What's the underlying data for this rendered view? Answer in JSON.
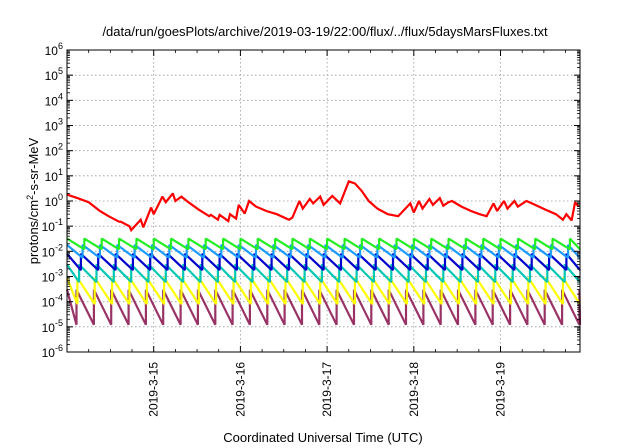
{
  "chart_data": {
    "type": "line",
    "title": "/data/run/goesPlots/archive/2019-03-19/22:00/flux/../flux/5daysMarsFluxes.txt",
    "xlabel": "Coordinated Universal Time (UTC)",
    "ylabel": {
      "prefix": "protons/cm",
      "sup": "2",
      "suffix": "-s-sr-MeV"
    },
    "x_range": [
      "2019-03-14 00:00",
      "2019-03-19 22:00"
    ],
    "x_ticks": [
      "2019-3-15",
      "2019-3-16",
      "2019-3-17",
      "2019-3-18",
      "2019-3-19"
    ],
    "y_scale": "log",
    "ylim": [
      1e-06,
      1000000.0
    ],
    "y_ticks": [
      {
        "base": "10",
        "exp": "-6"
      },
      {
        "base": "10",
        "exp": "-5"
      },
      {
        "base": "10",
        "exp": "-4"
      },
      {
        "base": "10",
        "exp": "-3"
      },
      {
        "base": "10",
        "exp": "-2"
      },
      {
        "base": "10",
        "exp": "-1"
      },
      {
        "base": "10",
        "exp": "0"
      },
      {
        "base": "10",
        "exp": "1"
      },
      {
        "base": "10",
        "exp": "2"
      },
      {
        "base": "10",
        "exp": "3"
      },
      {
        "base": "10",
        "exp": "4"
      },
      {
        "base": "10",
        "exp": "5"
      },
      {
        "base": "10",
        "exp": "6"
      }
    ],
    "grid": true,
    "series": [
      {
        "color": "#ff0000",
        "x": [
          0.0,
          0.12,
          0.25,
          0.38,
          0.48,
          0.6,
          0.62,
          0.72,
          0.74,
          0.85,
          0.88,
          0.97,
          1.0,
          1.1,
          1.14,
          1.22,
          1.25,
          1.32,
          1.4,
          1.52,
          1.64,
          1.66,
          1.74,
          1.76,
          1.86,
          1.88,
          1.95,
          1.98,
          2.05,
          2.1,
          2.18,
          2.3,
          2.42,
          2.56,
          2.6,
          2.68,
          2.72,
          2.8,
          2.84,
          2.92,
          2.96,
          3.06,
          3.15,
          3.25,
          3.32,
          3.4,
          3.48,
          3.58,
          3.7,
          3.82,
          3.96,
          4.0,
          4.06,
          4.1,
          4.18,
          4.22,
          4.3,
          4.34,
          4.4,
          4.44,
          4.55,
          4.66,
          4.76,
          4.84,
          4.92,
          4.96,
          5.04,
          5.08,
          5.16,
          5.2,
          5.3,
          5.4,
          5.52,
          5.64,
          5.72,
          5.76,
          5.82,
          5.86,
          5.9
        ],
        "y": [
          1.8,
          1.3,
          0.9,
          0.4,
          0.25,
          0.15,
          0.15,
          0.1,
          0.07,
          0.18,
          0.09,
          0.55,
          0.3,
          1.5,
          0.9,
          2.0,
          1.0,
          1.5,
          0.9,
          0.45,
          0.25,
          0.28,
          0.18,
          0.28,
          0.16,
          0.3,
          0.2,
          0.7,
          0.32,
          1.0,
          0.6,
          0.4,
          0.3,
          0.18,
          0.22,
          1.0,
          0.5,
          1.2,
          0.8,
          1.5,
          0.7,
          1.6,
          0.8,
          6.0,
          5.0,
          2.5,
          1.0,
          0.5,
          0.3,
          0.25,
          0.8,
          0.35,
          1.0,
          0.5,
          1.2,
          0.7,
          1.3,
          0.65,
          0.9,
          1.0,
          0.6,
          0.4,
          0.3,
          0.25,
          0.8,
          0.4,
          1.0,
          0.5,
          1.0,
          0.6,
          1.0,
          0.7,
          0.45,
          0.3,
          0.18,
          0.3,
          0.17,
          0.9,
          0.6
        ]
      },
      {
        "color": "#22ee22",
        "period": 0.2,
        "peak": 0.032,
        "trough": 0.012,
        "offset": 0.0
      },
      {
        "color": "#1a9cff",
        "period": 0.2,
        "peak": 0.018,
        "trough": 0.0055,
        "offset": 0.02
      },
      {
        "color": "#0000cc",
        "period": 0.2,
        "peak": 0.008,
        "trough": 0.0018,
        "offset": 0.04
      },
      {
        "color": "#00c8b4",
        "period": 0.2,
        "peak": 0.003,
        "trough": 0.0006,
        "offset": 0.06
      },
      {
        "color": "#ffff00",
        "period": 0.2,
        "peak": 0.0009,
        "trough": 8e-05,
        "offset": 0.08
      },
      {
        "color": "#993366",
        "period": 0.2,
        "peak": 0.0003,
        "trough": 1.2e-05,
        "offset": 0.09
      }
    ]
  }
}
